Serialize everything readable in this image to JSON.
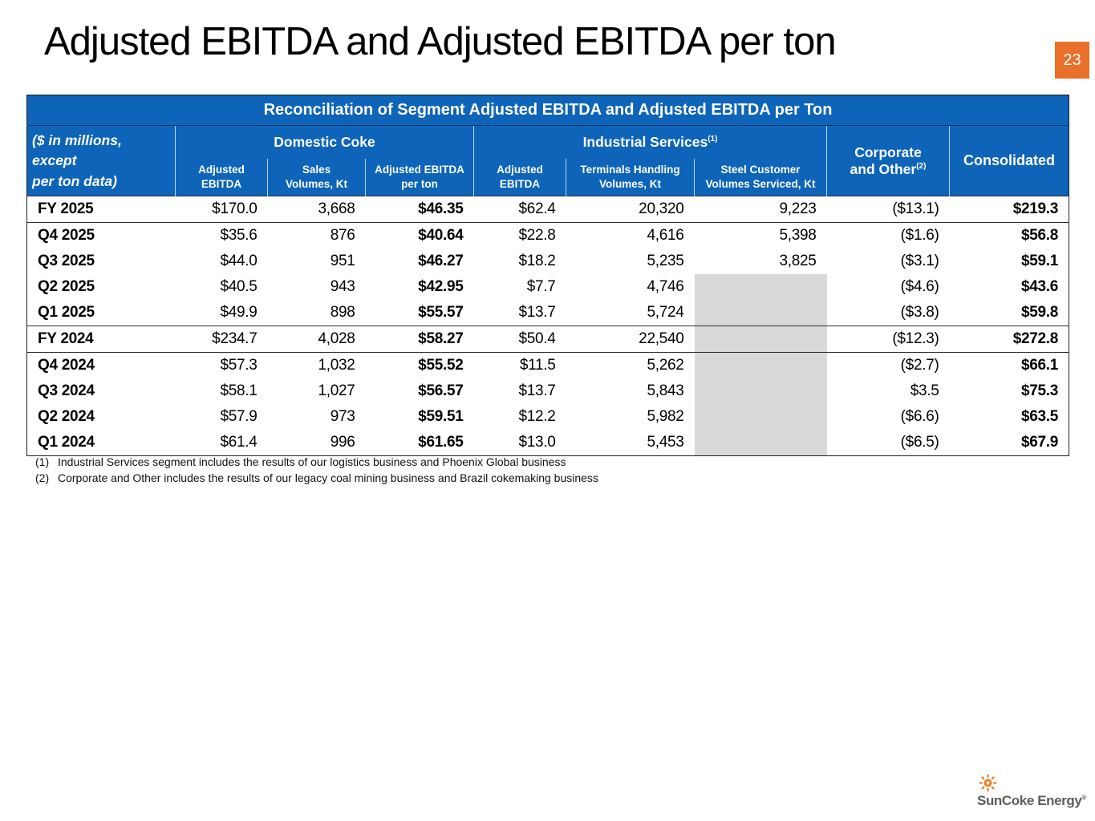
{
  "page": {
    "title": "Adjusted EBITDA and Adjusted EBITDA per ton",
    "page_number": "23"
  },
  "colors": {
    "header_blue": "#0d64b8",
    "accent_orange": "#e8702a",
    "muted_cell_gray": "#d9d9d9",
    "logo_orange": "#ed7d23",
    "logo_text_gray": "#5b5c5e"
  },
  "table": {
    "title": "Reconciliation of Segment Adjusted EBITDA and Adjusted EBITDA per Ton",
    "corner_label": "($ in millions, except\nper ton data)",
    "groups": [
      {
        "label": "Domestic Coke",
        "sup": ""
      },
      {
        "label": "Industrial Services",
        "sup": "(1)"
      }
    ],
    "corporate_col": {
      "label": "Corporate\nand Other",
      "sup": "(2)"
    },
    "consolidated_col": "Consolidated",
    "subheaders": [
      "Adjusted\nEBITDA",
      "Sales\nVolumes, Kt",
      "Adjusted EBITDA\nper ton",
      "Adjusted\nEBITDA",
      "Terminals Handling\nVolumes, Kt",
      "Steel Customer\nVolumes Serviced, Kt"
    ],
    "rows": [
      {
        "label": "FY 2025",
        "fy": true,
        "steel_gray": false,
        "cells": [
          "$170.0",
          "3,668",
          "$46.35",
          "$62.4",
          "20,320",
          "9,223",
          "($13.1)",
          "$219.3"
        ]
      },
      {
        "label": "Q4 2025",
        "fy": false,
        "steel_gray": false,
        "cells": [
          "$35.6",
          "876",
          "$40.64",
          "$22.8",
          "4,616",
          "5,398",
          "($1.6)",
          "$56.8"
        ]
      },
      {
        "label": "Q3 2025",
        "fy": false,
        "steel_gray": false,
        "cells": [
          "$44.0",
          "951",
          "$46.27",
          "$18.2",
          "5,235",
          "3,825",
          "($3.1)",
          "$59.1"
        ]
      },
      {
        "label": "Q2 2025",
        "fy": false,
        "steel_gray": true,
        "cells": [
          "$40.5",
          "943",
          "$42.95",
          "$7.7",
          "4,746",
          "",
          "($4.6)",
          "$43.6"
        ]
      },
      {
        "label": "Q1 2025",
        "fy": false,
        "steel_gray": true,
        "cells": [
          "$49.9",
          "898",
          "$55.57",
          "$13.7",
          "5,724",
          "",
          "($3.8)",
          "$59.8"
        ]
      },
      {
        "label": "FY 2024",
        "fy": true,
        "steel_gray": true,
        "cells": [
          "$234.7",
          "4,028",
          "$58.27",
          "$50.4",
          "22,540",
          "",
          "($12.3)",
          "$272.8"
        ]
      },
      {
        "label": "Q4 2024",
        "fy": false,
        "steel_gray": true,
        "cells": [
          "$57.3",
          "1,032",
          "$55.52",
          "$11.5",
          "5,262",
          "",
          "($2.7)",
          "$66.1"
        ]
      },
      {
        "label": "Q3 2024",
        "fy": false,
        "steel_gray": true,
        "cells": [
          "$58.1",
          "1,027",
          "$56.57",
          "$13.7",
          "5,843",
          "",
          "$3.5",
          "$75.3"
        ]
      },
      {
        "label": "Q2 2024",
        "fy": false,
        "steel_gray": true,
        "cells": [
          "$57.9",
          "973",
          "$59.51",
          "$12.2",
          "5,982",
          "",
          "($6.6)",
          "$63.5"
        ]
      },
      {
        "label": "Q1 2024",
        "fy": false,
        "steel_gray": true,
        "cells": [
          "$61.4",
          "996",
          "$61.65",
          "$13.0",
          "5,453",
          "",
          "($6.5)",
          "$67.9"
        ]
      }
    ]
  },
  "footnotes": [
    {
      "num": "(1)",
      "text": "Industrial Services segment includes the results of our logistics business and Phoenix Global business"
    },
    {
      "num": "(2)",
      "text": "Corporate and Other includes the results of our legacy coal mining business and Brazil cokemaking business"
    }
  ],
  "logo": {
    "name": "SunCoke Energy",
    "reg": "®"
  }
}
